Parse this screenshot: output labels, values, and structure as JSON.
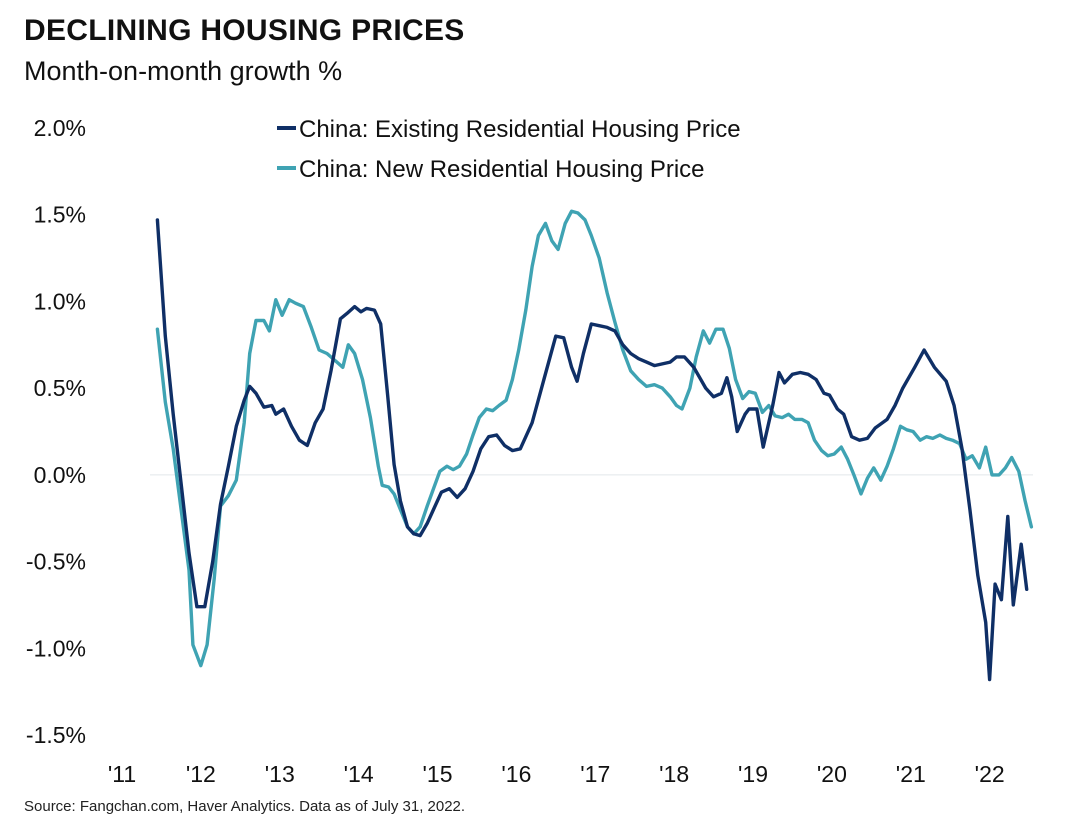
{
  "header": {
    "title": "DECLINING HOUSING PRICES",
    "subtitle": "Month-on-month growth %"
  },
  "footer": {
    "source": "Source: Fangchan.com, Haver Analytics. Data as of July 31, 2022."
  },
  "colors": {
    "existing": "#0f2f66",
    "new": "#3fa3b3",
    "zero_line": "#e2e6ea"
  },
  "chart_data": {
    "type": "line",
    "title": "DECLINING HOUSING PRICES",
    "subtitle": "Month-on-month growth %",
    "x_tick_labels": [
      "'11",
      "'12",
      "'13",
      "'14",
      "'15",
      "'16",
      "'17",
      "'18",
      "'19",
      "'20",
      "'21",
      "'22"
    ],
    "x_tick_values": [
      2011,
      2012,
      2013,
      2014,
      2015,
      2016,
      2017,
      2018,
      2019,
      2020,
      2021,
      2022
    ],
    "xlim": [
      2011,
      2022.6
    ],
    "y_tick_labels": [
      "2.0%",
      "1.5%",
      "1.0%",
      "0.5%",
      "0.0%",
      "-0.5%",
      "-1.0%",
      "-1.5%"
    ],
    "y_tick_values": [
      2.0,
      1.5,
      1.0,
      0.5,
      0.0,
      -0.5,
      -1.0,
      -1.5
    ],
    "ylim": [
      -1.5,
      2.0
    ],
    "legend_position": "top-center",
    "series": [
      {
        "name": "China: Existing Residential Housing Price",
        "color": "#0f2f66",
        "points": [
          [
            2011.5,
            1.47
          ],
          [
            2011.6,
            0.8
          ],
          [
            2011.7,
            0.35
          ],
          [
            2011.8,
            -0.05
          ],
          [
            2011.9,
            -0.45
          ],
          [
            2012.0,
            -0.76
          ],
          [
            2012.1,
            -0.76
          ],
          [
            2012.2,
            -0.5
          ],
          [
            2012.3,
            -0.17
          ],
          [
            2012.4,
            0.05
          ],
          [
            2012.5,
            0.28
          ],
          [
            2012.6,
            0.43
          ],
          [
            2012.67,
            0.51
          ],
          [
            2012.75,
            0.47
          ],
          [
            2012.85,
            0.39
          ],
          [
            2012.95,
            0.4
          ],
          [
            2013.0,
            0.35
          ],
          [
            2013.1,
            0.38
          ],
          [
            2013.2,
            0.28
          ],
          [
            2013.3,
            0.2
          ],
          [
            2013.4,
            0.17
          ],
          [
            2013.5,
            0.3
          ],
          [
            2013.6,
            0.38
          ],
          [
            2013.7,
            0.6
          ],
          [
            2013.82,
            0.9
          ],
          [
            2013.9,
            0.93
          ],
          [
            2014.0,
            0.97
          ],
          [
            2014.08,
            0.94
          ],
          [
            2014.15,
            0.96
          ],
          [
            2014.25,
            0.95
          ],
          [
            2014.33,
            0.87
          ],
          [
            2014.42,
            0.45
          ],
          [
            2014.5,
            0.06
          ],
          [
            2014.58,
            -0.15
          ],
          [
            2014.67,
            -0.3
          ],
          [
            2014.75,
            -0.34
          ],
          [
            2014.83,
            -0.35
          ],
          [
            2014.92,
            -0.28
          ],
          [
            2015.0,
            -0.2
          ],
          [
            2015.1,
            -0.1
          ],
          [
            2015.2,
            -0.08
          ],
          [
            2015.3,
            -0.13
          ],
          [
            2015.4,
            -0.08
          ],
          [
            2015.5,
            0.02
          ],
          [
            2015.6,
            0.15
          ],
          [
            2015.7,
            0.22
          ],
          [
            2015.8,
            0.23
          ],
          [
            2015.9,
            0.17
          ],
          [
            2016.0,
            0.14
          ],
          [
            2016.1,
            0.15
          ],
          [
            2016.25,
            0.3
          ],
          [
            2016.4,
            0.55
          ],
          [
            2016.55,
            0.8
          ],
          [
            2016.65,
            0.79
          ],
          [
            2016.75,
            0.62
          ],
          [
            2016.82,
            0.54
          ],
          [
            2016.9,
            0.7
          ],
          [
            2017.0,
            0.87
          ],
          [
            2017.1,
            0.86
          ],
          [
            2017.2,
            0.85
          ],
          [
            2017.3,
            0.83
          ],
          [
            2017.4,
            0.75
          ],
          [
            2017.5,
            0.7
          ],
          [
            2017.6,
            0.67
          ],
          [
            2017.7,
            0.65
          ],
          [
            2017.8,
            0.63
          ],
          [
            2017.9,
            0.64
          ],
          [
            2018.0,
            0.65
          ],
          [
            2018.08,
            0.68
          ],
          [
            2018.18,
            0.68
          ],
          [
            2018.3,
            0.62
          ],
          [
            2018.45,
            0.5
          ],
          [
            2018.55,
            0.45
          ],
          [
            2018.65,
            0.47
          ],
          [
            2018.72,
            0.56
          ],
          [
            2018.78,
            0.45
          ],
          [
            2018.85,
            0.25
          ],
          [
            2018.95,
            0.35
          ],
          [
            2019.0,
            0.38
          ],
          [
            2019.1,
            0.38
          ],
          [
            2019.18,
            0.16
          ],
          [
            2019.3,
            0.4
          ],
          [
            2019.38,
            0.59
          ],
          [
            2019.45,
            0.53
          ],
          [
            2019.55,
            0.58
          ],
          [
            2019.65,
            0.59
          ],
          [
            2019.75,
            0.58
          ],
          [
            2019.85,
            0.55
          ],
          [
            2019.95,
            0.47
          ],
          [
            2020.02,
            0.46
          ],
          [
            2020.12,
            0.38
          ],
          [
            2020.2,
            0.35
          ],
          [
            2020.3,
            0.22
          ],
          [
            2020.4,
            0.2
          ],
          [
            2020.5,
            0.21
          ],
          [
            2020.6,
            0.27
          ],
          [
            2020.75,
            0.32
          ],
          [
            2020.85,
            0.4
          ],
          [
            2020.95,
            0.5
          ],
          [
            2021.1,
            0.62
          ],
          [
            2021.22,
            0.72
          ],
          [
            2021.35,
            0.62
          ],
          [
            2021.5,
            0.54
          ],
          [
            2021.6,
            0.4
          ],
          [
            2021.7,
            0.15
          ],
          [
            2021.8,
            -0.2
          ],
          [
            2021.9,
            -0.58
          ],
          [
            2022.0,
            -0.85
          ],
          [
            2022.05,
            -1.18
          ],
          [
            2022.12,
            -0.63
          ],
          [
            2022.2,
            -0.72
          ],
          [
            2022.28,
            -0.24
          ],
          [
            2022.35,
            -0.75
          ],
          [
            2022.45,
            -0.4
          ],
          [
            2022.52,
            -0.66
          ]
        ]
      },
      {
        "name": "China: New Residential Housing Price",
        "color": "#3fa3b3",
        "points": [
          [
            2011.5,
            0.84
          ],
          [
            2011.6,
            0.42
          ],
          [
            2011.7,
            0.15
          ],
          [
            2011.8,
            -0.2
          ],
          [
            2011.9,
            -0.55
          ],
          [
            2011.95,
            -0.98
          ],
          [
            2012.05,
            -1.1
          ],
          [
            2012.13,
            -0.98
          ],
          [
            2012.22,
            -0.6
          ],
          [
            2012.3,
            -0.18
          ],
          [
            2012.4,
            -0.12
          ],
          [
            2012.5,
            -0.03
          ],
          [
            2012.6,
            0.3
          ],
          [
            2012.67,
            0.7
          ],
          [
            2012.75,
            0.89
          ],
          [
            2012.85,
            0.89
          ],
          [
            2012.92,
            0.83
          ],
          [
            2013.0,
            1.01
          ],
          [
            2013.08,
            0.92
          ],
          [
            2013.17,
            1.01
          ],
          [
            2013.25,
            0.99
          ],
          [
            2013.35,
            0.97
          ],
          [
            2013.45,
            0.85
          ],
          [
            2013.55,
            0.72
          ],
          [
            2013.65,
            0.7
          ],
          [
            2013.75,
            0.66
          ],
          [
            2013.85,
            0.62
          ],
          [
            2013.92,
            0.75
          ],
          [
            2014.0,
            0.7
          ],
          [
            2014.1,
            0.55
          ],
          [
            2014.2,
            0.33
          ],
          [
            2014.3,
            0.05
          ],
          [
            2014.35,
            -0.06
          ],
          [
            2014.43,
            -0.07
          ],
          [
            2014.5,
            -0.11
          ],
          [
            2014.58,
            -0.2
          ],
          [
            2014.67,
            -0.3
          ],
          [
            2014.75,
            -0.34
          ],
          [
            2014.83,
            -0.3
          ],
          [
            2014.92,
            -0.18
          ],
          [
            2015.0,
            -0.08
          ],
          [
            2015.08,
            0.02
          ],
          [
            2015.17,
            0.05
          ],
          [
            2015.25,
            0.03
          ],
          [
            2015.33,
            0.05
          ],
          [
            2015.42,
            0.12
          ],
          [
            2015.5,
            0.23
          ],
          [
            2015.58,
            0.33
          ],
          [
            2015.67,
            0.38
          ],
          [
            2015.75,
            0.37
          ],
          [
            2015.83,
            0.4
          ],
          [
            2015.92,
            0.43
          ],
          [
            2016.0,
            0.55
          ],
          [
            2016.08,
            0.72
          ],
          [
            2016.17,
            0.95
          ],
          [
            2016.25,
            1.2
          ],
          [
            2016.33,
            1.38
          ],
          [
            2016.42,
            1.45
          ],
          [
            2016.5,
            1.35
          ],
          [
            2016.58,
            1.3
          ],
          [
            2016.67,
            1.45
          ],
          [
            2016.75,
            1.52
          ],
          [
            2016.83,
            1.51
          ],
          [
            2016.92,
            1.47
          ],
          [
            2017.0,
            1.38
          ],
          [
            2017.1,
            1.25
          ],
          [
            2017.2,
            1.05
          ],
          [
            2017.3,
            0.88
          ],
          [
            2017.4,
            0.72
          ],
          [
            2017.5,
            0.6
          ],
          [
            2017.6,
            0.55
          ],
          [
            2017.7,
            0.51
          ],
          [
            2017.8,
            0.52
          ],
          [
            2017.9,
            0.5
          ],
          [
            2018.0,
            0.45
          ],
          [
            2018.08,
            0.4
          ],
          [
            2018.15,
            0.38
          ],
          [
            2018.25,
            0.5
          ],
          [
            2018.33,
            0.68
          ],
          [
            2018.42,
            0.83
          ],
          [
            2018.5,
            0.76
          ],
          [
            2018.58,
            0.84
          ],
          [
            2018.67,
            0.84
          ],
          [
            2018.75,
            0.73
          ],
          [
            2018.83,
            0.55
          ],
          [
            2018.92,
            0.44
          ],
          [
            2019.0,
            0.48
          ],
          [
            2019.08,
            0.47
          ],
          [
            2019.17,
            0.36
          ],
          [
            2019.25,
            0.4
          ],
          [
            2019.33,
            0.34
          ],
          [
            2019.42,
            0.33
          ],
          [
            2019.5,
            0.35
          ],
          [
            2019.58,
            0.32
          ],
          [
            2019.67,
            0.32
          ],
          [
            2019.75,
            0.3
          ],
          [
            2019.83,
            0.2
          ],
          [
            2019.92,
            0.14
          ],
          [
            2020.0,
            0.11
          ],
          [
            2020.08,
            0.12
          ],
          [
            2020.17,
            0.16
          ],
          [
            2020.25,
            0.09
          ],
          [
            2020.33,
            0.0
          ],
          [
            2020.42,
            -0.11
          ],
          [
            2020.5,
            -0.02
          ],
          [
            2020.58,
            0.04
          ],
          [
            2020.67,
            -0.03
          ],
          [
            2020.75,
            0.05
          ],
          [
            2020.83,
            0.15
          ],
          [
            2020.92,
            0.28
          ],
          [
            2021.0,
            0.26
          ],
          [
            2021.08,
            0.25
          ],
          [
            2021.17,
            0.2
          ],
          [
            2021.25,
            0.22
          ],
          [
            2021.33,
            0.21
          ],
          [
            2021.42,
            0.23
          ],
          [
            2021.5,
            0.21
          ],
          [
            2021.58,
            0.2
          ],
          [
            2021.67,
            0.18
          ],
          [
            2021.75,
            0.09
          ],
          [
            2021.83,
            0.11
          ],
          [
            2021.92,
            0.04
          ],
          [
            2022.0,
            0.16
          ],
          [
            2022.08,
            0.0
          ],
          [
            2022.17,
            0.0
          ],
          [
            2022.25,
            0.04
          ],
          [
            2022.33,
            0.1
          ],
          [
            2022.42,
            0.02
          ],
          [
            2022.5,
            -0.15
          ],
          [
            2022.58,
            -0.3
          ]
        ]
      }
    ]
  }
}
